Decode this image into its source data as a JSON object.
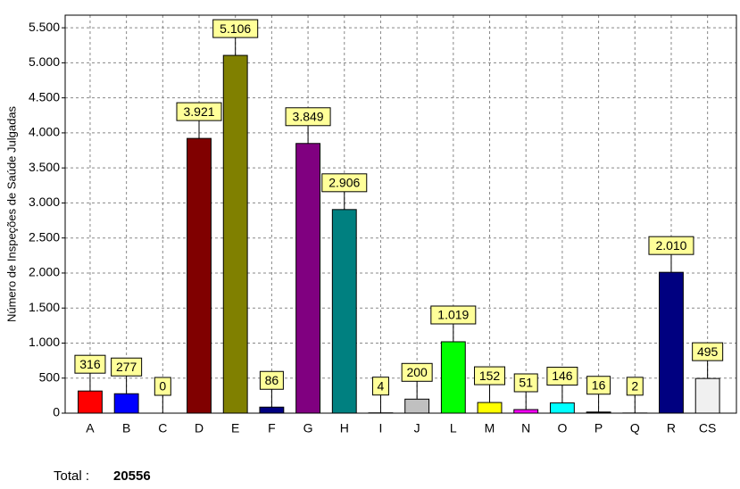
{
  "chart_data": {
    "type": "bar",
    "y_label": "Número de Inspeções de Saúde Julgadas",
    "categories": [
      "A",
      "B",
      "C",
      "D",
      "E",
      "F",
      "G",
      "H",
      "I",
      "J",
      "L",
      "M",
      "N",
      "O",
      "P",
      "Q",
      "R",
      "CS"
    ],
    "values": [
      316,
      277,
      0,
      3921,
      5106,
      86,
      3849,
      2906,
      4,
      200,
      1019,
      152,
      51,
      146,
      16,
      2,
      2010,
      495
    ],
    "value_labels": [
      "316",
      "277",
      "0",
      "3.921",
      "5.106",
      "86",
      "3.849",
      "2.906",
      "4",
      "200",
      "1.019",
      "152",
      "51",
      "146",
      "16",
      "2",
      "2.010",
      "495"
    ],
    "colors": [
      "#ff0000",
      "#0000ff",
      "#808080",
      "#800000",
      "#808000",
      "#000080",
      "#800080",
      "#008080",
      "#808080",
      "#c0c0c0",
      "#00ff00",
      "#ffff00",
      "#ff00ff",
      "#00ffff",
      "#000000",
      "#000000",
      "#000080",
      "#f0f0f0"
    ],
    "ylim": [
      0,
      5680
    ],
    "yticks": [
      0,
      500,
      {
        "value": 1000,
        "label": "1.000"
      },
      {
        "value": 1500,
        "label": "1.500"
      },
      {
        "value": 2000,
        "label": "2.000"
      },
      {
        "value": 2500,
        "label": "2.500"
      },
      {
        "value": 3000,
        "label": "3.000"
      },
      {
        "value": 3500,
        "label": "3.500"
      },
      {
        "value": 4000,
        "label": "4.000"
      },
      {
        "value": 4500,
        "label": "4.500"
      },
      {
        "value": 5000,
        "label": "5.000"
      },
      {
        "value": 5500,
        "label": "5.500"
      }
    ],
    "grid": true
  },
  "footer": {
    "total_label": "Total :",
    "total": 20556
  }
}
